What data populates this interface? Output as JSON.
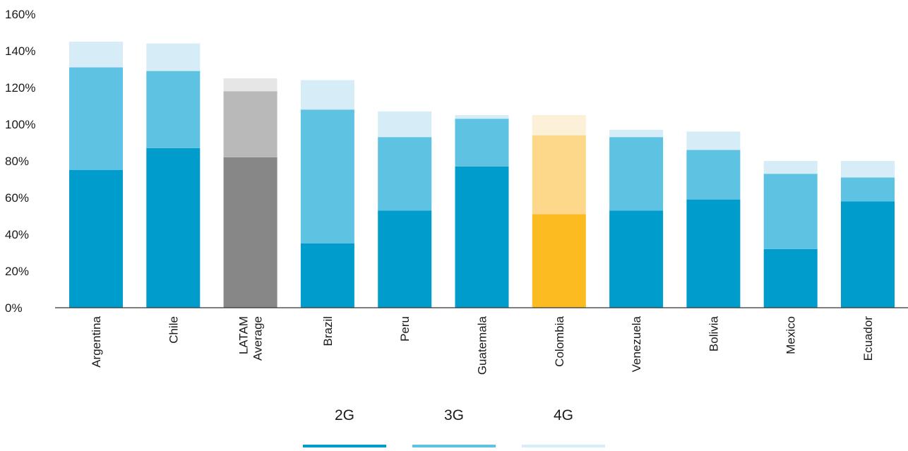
{
  "chart_data": {
    "type": "bar",
    "stacked": true,
    "categories": [
      [
        "Argentina"
      ],
      [
        "Chile"
      ],
      [
        "LATAM",
        "Average"
      ],
      [
        "Brazil"
      ],
      [
        "Peru"
      ],
      [
        "Guatemala"
      ],
      [
        "Colombia"
      ],
      [
        "Venezuela"
      ],
      [
        "Bolivia"
      ],
      [
        "Mexico"
      ],
      [
        "Ecuador"
      ]
    ],
    "series": [
      {
        "name": "2G",
        "values": [
          75,
          87,
          82,
          35,
          53,
          77,
          51,
          53,
          59,
          32,
          58
        ]
      },
      {
        "name": "3G",
        "values": [
          56,
          42,
          36,
          73,
          40,
          26,
          43,
          40,
          27,
          41,
          13
        ]
      },
      {
        "name": "4G",
        "values": [
          14,
          15,
          7,
          16,
          14,
          2,
          11,
          4,
          10,
          7,
          9
        ]
      }
    ],
    "colors": {
      "2G": "#009ccc",
      "3G": "#5ec2e3",
      "4G": "#d6edf7",
      "highlight": {
        "LATAM Average": [
          "#878787",
          "#b9b9b9",
          "#e6e6e6"
        ],
        "Colombia": [
          "#fbbb21",
          "#fdd88a",
          "#fdf0d8"
        ]
      }
    },
    "ylim": [
      0,
      160
    ],
    "yticks": [
      0,
      20,
      40,
      60,
      80,
      100,
      120,
      140,
      160
    ],
    "ytick_labels": [
      "0%",
      "20%",
      "40%",
      "60%",
      "80%",
      "100%",
      "120%",
      "140%",
      "160%"
    ],
    "title": "",
    "xlabel": "",
    "ylabel": "",
    "grid": false,
    "legend_position": "bottom-center"
  }
}
